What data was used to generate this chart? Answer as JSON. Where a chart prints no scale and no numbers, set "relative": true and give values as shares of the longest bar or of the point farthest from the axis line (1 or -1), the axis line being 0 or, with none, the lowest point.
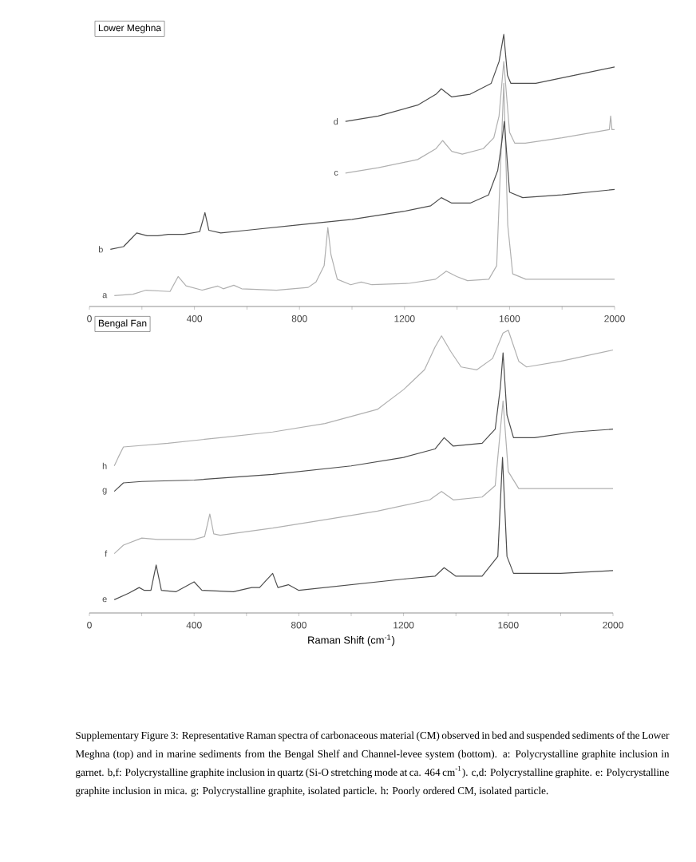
{
  "chart_data": [
    {
      "type": "line",
      "title": "Lower Meghna",
      "relative": true,
      "xlim": [
        0,
        2000
      ],
      "xticks": [
        0,
        {
          "value": 200,
          "label": null
        },
        400,
        {
          "value": 600,
          "label": null
        },
        800,
        {
          "value": 1000,
          "label": null
        },
        1200,
        {
          "value": 1400,
          "label": null
        },
        1600,
        {
          "value": 1800,
          "label": null
        },
        2000
      ],
      "series": [
        {
          "name": "a",
          "color": "#b0b0b0",
          "x": [
            95,
            166,
            216,
            307,
            338,
            368,
            429,
            489,
            510,
            550,
            580,
            712,
            833,
            863,
            894,
            908,
            920,
            944,
            995,
            1035,
            1076,
            1217,
            1318,
            1359,
            1399,
            1440,
            1521,
            1551,
            1565,
            1578,
            1593,
            1612,
            1662,
            2000
          ],
          "values": [
            0.04,
            0.045,
            0.06,
            0.055,
            0.11,
            0.076,
            0.06,
            0.075,
            0.065,
            0.078,
            0.065,
            0.06,
            0.07,
            0.09,
            0.15,
            0.29,
            0.19,
            0.1,
            0.08,
            0.09,
            0.08,
            0.085,
            0.1,
            0.13,
            0.11,
            0.095,
            0.1,
            0.15,
            0.5,
            0.82,
            0.3,
            0.12,
            0.1,
            0.1
          ]
        },
        {
          "name": "b",
          "color": "#4d4d4d",
          "x": [
            80,
            130,
            160,
            180,
            220,
            260,
            300,
            360,
            420,
            440,
            455,
            500,
            600,
            800,
            1000,
            1200,
            1300,
            1340,
            1380,
            1450,
            1520,
            1555,
            1570,
            1580,
            1600,
            1650,
            1800,
            2000
          ],
          "values": [
            0.21,
            0.22,
            0.25,
            0.27,
            0.26,
            0.26,
            0.265,
            0.265,
            0.275,
            0.345,
            0.28,
            0.27,
            0.28,
            0.3,
            0.32,
            0.35,
            0.37,
            0.4,
            0.38,
            0.38,
            0.41,
            0.5,
            0.6,
            0.68,
            0.42,
            0.4,
            0.41,
            0.43
          ]
        },
        {
          "name": "c",
          "color": "#b0b0b0",
          "x": [
            975,
            1100,
            1250,
            1320,
            1345,
            1380,
            1420,
            1500,
            1540,
            1560,
            1578,
            1600,
            1620,
            1660,
            1800,
            1980,
            1985,
            1990,
            2000
          ],
          "values": [
            0.49,
            0.51,
            0.54,
            0.58,
            0.61,
            0.57,
            0.56,
            0.58,
            0.62,
            0.7,
            0.9,
            0.64,
            0.6,
            0.6,
            0.62,
            0.65,
            0.7,
            0.65,
            0.65
          ]
        },
        {
          "name": "d",
          "color": "#4d4d4d",
          "x": [
            975,
            1100,
            1250,
            1320,
            1340,
            1380,
            1450,
            1530,
            1560,
            1578,
            1592,
            1605,
            1700,
            1850,
            2000
          ],
          "values": [
            0.68,
            0.7,
            0.74,
            0.78,
            0.8,
            0.77,
            0.78,
            0.82,
            0.9,
            1.0,
            0.85,
            0.82,
            0.82,
            0.85,
            0.88
          ]
        }
      ]
    },
    {
      "type": "line",
      "title": "Bengal Fan",
      "xlabel": "Raman Shift (cm$^{-1}$)",
      "relative": true,
      "xlim": [
        0,
        2000
      ],
      "xticks": [
        0,
        {
          "value": 200,
          "label": null
        },
        400,
        {
          "value": 600,
          "label": null
        },
        800,
        {
          "value": 1000,
          "label": null
        },
        1200,
        {
          "value": 1400,
          "label": null
        },
        1600,
        {
          "value": 1800,
          "label": null
        },
        2000
      ],
      "series": [
        {
          "name": "e",
          "color": "#4d4d4d",
          "x": [
            95,
            150,
            190,
            210,
            235,
            255,
            275,
            330,
            400,
            430,
            550,
            620,
            650,
            700,
            720,
            760,
            800,
            1000,
            1200,
            1320,
            1355,
            1400,
            1500,
            1560,
            1578,
            1595,
            1620,
            1800,
            2000
          ],
          "values": [
            0.047,
            0.07,
            0.09,
            0.08,
            0.08,
            0.17,
            0.08,
            0.075,
            0.11,
            0.08,
            0.075,
            0.09,
            0.09,
            0.14,
            0.09,
            0.1,
            0.08,
            0.1,
            0.12,
            0.13,
            0.16,
            0.13,
            0.13,
            0.2,
            0.55,
            0.2,
            0.14,
            0.14,
            0.15
          ]
        },
        {
          "name": "f",
          "color": "#b0b0b0",
          "x": [
            95,
            130,
            200,
            260,
            400,
            440,
            460,
            475,
            500,
            700,
            900,
            1100,
            1300,
            1345,
            1390,
            1500,
            1550,
            1570,
            1580,
            1600,
            1640,
            1800,
            2000
          ],
          "values": [
            0.21,
            0.24,
            0.265,
            0.26,
            0.26,
            0.27,
            0.35,
            0.28,
            0.275,
            0.3,
            0.33,
            0.36,
            0.4,
            0.43,
            0.4,
            0.41,
            0.45,
            0.65,
            0.75,
            0.5,
            0.44,
            0.44,
            0.44
          ]
        },
        {
          "name": "g",
          "color": "#4d4d4d",
          "x": [
            95,
            130,
            200,
            400,
            700,
            1000,
            1200,
            1320,
            1355,
            1390,
            1500,
            1550,
            1570,
            1580,
            1595,
            1620,
            1700,
            1850,
            2000
          ],
          "values": [
            0.43,
            0.46,
            0.465,
            0.47,
            0.49,
            0.52,
            0.55,
            0.58,
            0.62,
            0.59,
            0.6,
            0.65,
            0.8,
            0.92,
            0.7,
            0.62,
            0.62,
            0.64,
            0.65
          ]
        },
        {
          "name": "h",
          "color": "#b0b0b0",
          "x": [
            95,
            110,
            130,
            300,
            500,
            700,
            900,
            1100,
            1200,
            1280,
            1320,
            1345,
            1380,
            1420,
            1480,
            1540,
            1580,
            1600,
            1640,
            1670,
            1800,
            2000
          ],
          "values": [
            0.52,
            0.55,
            0.587,
            0.6,
            0.62,
            0.64,
            0.67,
            0.72,
            0.79,
            0.86,
            0.94,
            0.98,
            0.925,
            0.87,
            0.86,
            0.9,
            0.99,
            1.0,
            0.89,
            0.87,
            0.89,
            0.93
          ]
        }
      ],
      "annotations": [
        "Supplementary Figure 3: Representative Raman spectra of carbonaceous material (CM) observed in bed and suspended sediments of the Lower Meghna (top) and in marine sediments from the Bengal Shelf and Channel-levee system (bottom). a: Polycrystalline graphite inclusion in garnet. b,f: Polycrystalline graphite inclusion in quartz (Si-O stretching mode at ca. 464 cm$^{-1}$). c,d: Polycrystalline graphite. e: Polycrystalline graphite inclusion in mica. g: Polycrystalline graphite, isolated particle. h: Poorly ordered CM, isolated particle."
      ]
    }
  ]
}
